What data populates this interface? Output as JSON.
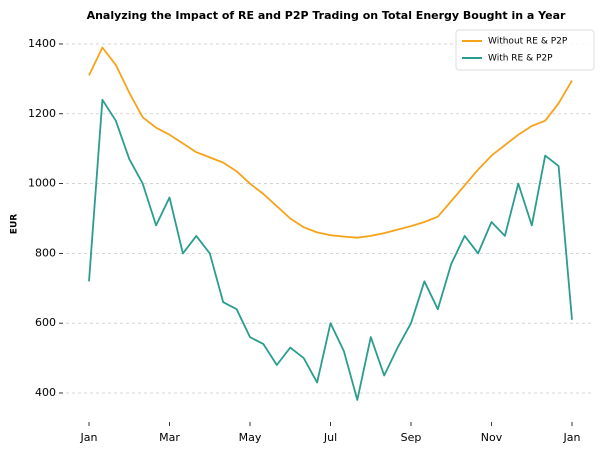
{
  "chart_data": {
    "type": "line",
    "title": "Analyzing the Impact of RE and P2P Trading on Total Energy Bought in a Year",
    "y_label": "EUR",
    "categories": [
      "Jan",
      null,
      null,
      null,
      null,
      null,
      "Mar",
      null,
      null,
      null,
      null,
      null,
      "May",
      null,
      null,
      null,
      null,
      null,
      "Jul",
      null,
      null,
      null,
      null,
      null,
      "Sep",
      null,
      null,
      null,
      null,
      null,
      "Nov",
      null,
      null,
      null,
      null,
      null,
      "Jan"
    ],
    "series": [
      {
        "name": "Without RE & P2P",
        "color": "#f5a31a",
        "values": [
          1310,
          1390,
          1340,
          1260,
          1190,
          1160,
          1140,
          1115,
          1090,
          1075,
          1060,
          1035,
          1000,
          970,
          935,
          900,
          875,
          860,
          852,
          848,
          845,
          850,
          858,
          868,
          878,
          890,
          905,
          950,
          995,
          1040,
          1080,
          1110,
          1140,
          1165,
          1180,
          1230,
          1295
        ]
      },
      {
        "name": "With RE & P2P",
        "color": "#2a9d8f",
        "values": [
          720,
          1240,
          1180,
          1070,
          1000,
          880,
          960,
          800,
          850,
          800,
          660,
          640,
          560,
          540,
          480,
          530,
          500,
          430,
          600,
          520,
          380,
          560,
          450,
          530,
          600,
          720,
          640,
          770,
          850,
          800,
          890,
          850,
          1000,
          880,
          1080,
          1050,
          610
        ]
      }
    ],
    "ylim": [
      330,
      1440
    ],
    "yticks": [
      400,
      600,
      800,
      1000,
      1200,
      1400
    ],
    "grid": true,
    "legend": "upper right"
  }
}
